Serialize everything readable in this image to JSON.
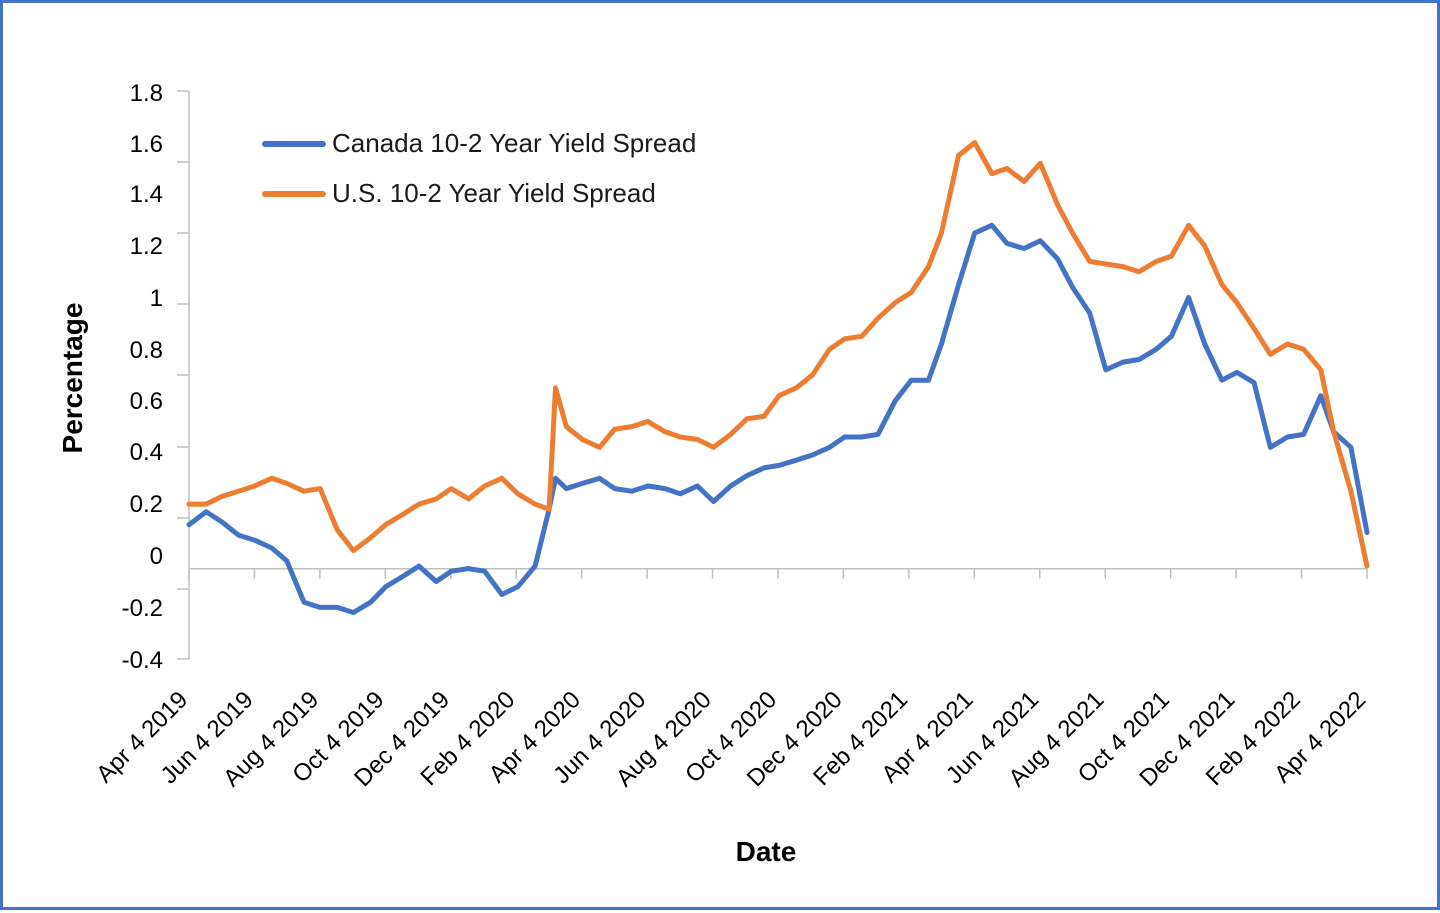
{
  "chart_data": {
    "type": "line",
    "title": "",
    "xlabel": "Date",
    "ylabel": "Percentage",
    "x_ticks": [
      "Apr 4 2019",
      "Jun 4 2019",
      "Aug 4 2019",
      "Oct 4 2019",
      "Dec 4 2019",
      "Feb 4 2020",
      "Apr 4 2020",
      "Jun 4 2020",
      "Aug 4 2020",
      "Oct 4 2020",
      "Dec 4 2020",
      "Feb 4 2021",
      "Apr 4 2021",
      "Jun 4 2021",
      "Aug 4 2021",
      "Oct 4 2021",
      "Dec 4 2021",
      "Feb 4 2022",
      "Apr 4 2022"
    ],
    "y_tick_labels": [
      "1.8",
      "1.6",
      "1.4",
      "1.2",
      "1",
      "0.8",
      "0.6",
      "0.4",
      "0.2",
      "0",
      "-0.2",
      "-0.4"
    ],
    "ylim": [
      -0.4,
      1.8
    ],
    "grid": false,
    "legend": "top-left",
    "series": [
      {
        "name": "Canada 10-2 Year Yield Spread",
        "color": "#4472C4",
        "x": [
          "2019-04-04",
          "2019-04-20",
          "2019-05-05",
          "2019-05-20",
          "2019-06-04",
          "2019-06-20",
          "2019-07-04",
          "2019-07-20",
          "2019-08-04",
          "2019-08-20",
          "2019-09-04",
          "2019-09-20",
          "2019-10-04",
          "2019-10-20",
          "2019-11-04",
          "2019-11-20",
          "2019-12-04",
          "2019-12-20",
          "2020-01-04",
          "2020-01-20",
          "2020-02-04",
          "2020-02-20",
          "2020-03-04",
          "2020-03-10",
          "2020-03-20",
          "2020-04-04",
          "2020-04-20",
          "2020-05-04",
          "2020-05-20",
          "2020-06-04",
          "2020-06-20",
          "2020-07-04",
          "2020-07-20",
          "2020-08-04",
          "2020-08-20",
          "2020-09-04",
          "2020-09-20",
          "2020-10-04",
          "2020-10-20",
          "2020-11-04",
          "2020-11-20",
          "2020-12-04",
          "2020-12-20",
          "2021-01-04",
          "2021-01-20",
          "2021-02-04",
          "2021-02-20",
          "2021-03-04",
          "2021-03-20",
          "2021-04-04",
          "2021-04-20",
          "2021-05-04",
          "2021-05-20",
          "2021-06-04",
          "2021-06-20",
          "2021-07-04",
          "2021-07-20",
          "2021-08-04",
          "2021-08-20",
          "2021-09-04",
          "2021-09-20",
          "2021-10-04",
          "2021-10-20",
          "2021-11-04",
          "2021-11-20",
          "2021-12-04",
          "2021-12-20",
          "2022-01-04",
          "2022-01-20",
          "2022-02-04",
          "2022-02-20",
          "2022-03-04",
          "2022-03-20",
          "2022-04-04"
        ],
        "y": [
          0.12,
          0.17,
          0.13,
          0.08,
          0.06,
          0.03,
          -0.02,
          -0.18,
          -0.2,
          -0.2,
          -0.22,
          -0.18,
          -0.12,
          -0.08,
          -0.04,
          -0.1,
          -0.06,
          -0.05,
          -0.06,
          -0.15,
          -0.12,
          -0.04,
          0.18,
          0.3,
          0.26,
          0.28,
          0.3,
          0.26,
          0.25,
          0.27,
          0.26,
          0.24,
          0.27,
          0.21,
          0.27,
          0.31,
          0.34,
          0.35,
          0.37,
          0.39,
          0.42,
          0.46,
          0.46,
          0.47,
          0.6,
          0.68,
          0.68,
          0.82,
          1.05,
          1.25,
          1.28,
          1.21,
          1.19,
          1.22,
          1.15,
          1.04,
          0.94,
          0.72,
          0.75,
          0.76,
          0.8,
          0.85,
          1.0,
          0.82,
          0.68,
          0.71,
          0.67,
          0.42,
          0.46,
          0.47,
          0.62,
          0.48,
          0.42,
          0.09
        ]
      },
      {
        "name": "U.S. 10-2 Year Yield Spread",
        "color": "#ED7D31",
        "x": [
          "2019-04-04",
          "2019-04-20",
          "2019-05-05",
          "2019-05-20",
          "2019-06-04",
          "2019-06-20",
          "2019-07-04",
          "2019-07-20",
          "2019-08-04",
          "2019-08-20",
          "2019-09-04",
          "2019-09-20",
          "2019-10-04",
          "2019-10-20",
          "2019-11-04",
          "2019-11-20",
          "2019-12-04",
          "2019-12-20",
          "2020-01-04",
          "2020-01-20",
          "2020-02-04",
          "2020-02-20",
          "2020-03-04",
          "2020-03-10",
          "2020-03-20",
          "2020-04-04",
          "2020-04-20",
          "2020-05-04",
          "2020-05-20",
          "2020-06-04",
          "2020-06-20",
          "2020-07-04",
          "2020-07-20",
          "2020-08-04",
          "2020-08-20",
          "2020-09-04",
          "2020-09-20",
          "2020-10-04",
          "2020-10-20",
          "2020-11-04",
          "2020-11-20",
          "2020-12-04",
          "2020-12-20",
          "2021-01-04",
          "2021-01-20",
          "2021-02-04",
          "2021-02-20",
          "2021-03-04",
          "2021-03-20",
          "2021-04-04",
          "2021-04-20",
          "2021-05-04",
          "2021-05-20",
          "2021-06-04",
          "2021-06-20",
          "2021-07-04",
          "2021-07-20",
          "2021-08-04",
          "2021-08-20",
          "2021-09-04",
          "2021-09-20",
          "2021-10-04",
          "2021-10-20",
          "2021-11-04",
          "2021-11-20",
          "2021-12-04",
          "2021-12-20",
          "2022-01-04",
          "2022-01-20",
          "2022-02-04",
          "2022-02-20",
          "2022-03-04",
          "2022-03-20",
          "2022-04-04"
        ],
        "y": [
          0.2,
          0.2,
          0.23,
          0.25,
          0.27,
          0.3,
          0.28,
          0.25,
          0.26,
          0.1,
          0.02,
          0.07,
          0.12,
          0.16,
          0.2,
          0.22,
          0.26,
          0.22,
          0.27,
          0.3,
          0.24,
          0.2,
          0.18,
          0.65,
          0.5,
          0.45,
          0.42,
          0.49,
          0.5,
          0.52,
          0.48,
          0.46,
          0.45,
          0.42,
          0.47,
          0.53,
          0.54,
          0.62,
          0.65,
          0.7,
          0.8,
          0.84,
          0.85,
          0.92,
          0.98,
          1.02,
          1.12,
          1.25,
          1.55,
          1.6,
          1.48,
          1.5,
          1.45,
          1.52,
          1.36,
          1.25,
          1.14,
          1.13,
          1.12,
          1.1,
          1.14,
          1.16,
          1.28,
          1.2,
          1.05,
          0.98,
          0.88,
          0.78,
          0.82,
          0.8,
          0.72,
          0.48,
          0.25,
          -0.04
        ]
      }
    ]
  }
}
